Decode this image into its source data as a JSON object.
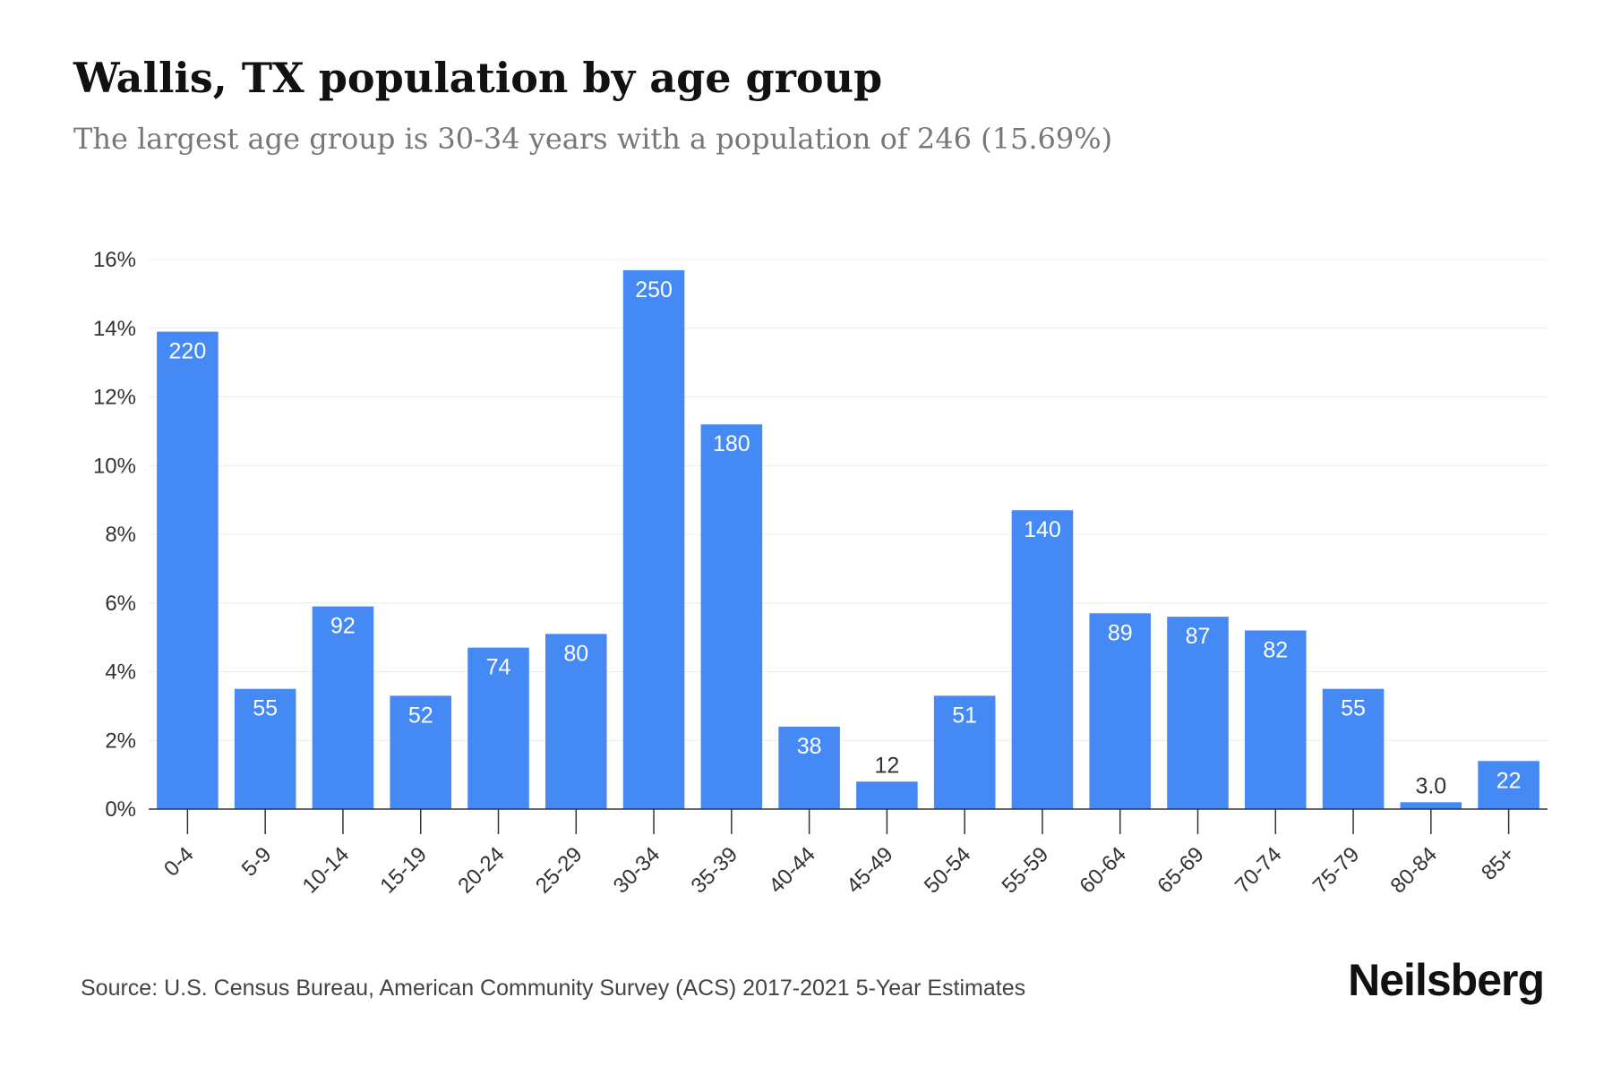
{
  "header": {
    "title": "Wallis, TX population by age group",
    "subtitle": "The largest age group is 30-34 years with a population of 246 (15.69%)"
  },
  "chart_data": {
    "type": "bar",
    "categories": [
      "0-4",
      "5-9",
      "10-14",
      "15-19",
      "20-24",
      "25-29",
      "30-34",
      "35-39",
      "40-44",
      "45-49",
      "50-54",
      "55-59",
      "60-64",
      "65-69",
      "70-74",
      "75-79",
      "80-84",
      "85+"
    ],
    "values": [
      13.9,
      3.5,
      5.9,
      3.3,
      4.7,
      5.1,
      15.69,
      11.2,
      2.4,
      0.8,
      3.3,
      8.7,
      5.7,
      5.6,
      5.2,
      3.5,
      0.2,
      1.4
    ],
    "data_labels": [
      "220",
      "55",
      "92",
      "52",
      "74",
      "80",
      "250",
      "180",
      "38",
      "12",
      "51",
      "140",
      "89",
      "87",
      "82",
      "55",
      "3.0",
      "22"
    ],
    "label_inside": [
      true,
      true,
      true,
      true,
      true,
      true,
      true,
      true,
      true,
      false,
      true,
      true,
      true,
      true,
      true,
      true,
      false,
      true
    ],
    "ylim": [
      0,
      16
    ],
    "yticks": [
      0,
      2,
      4,
      6,
      8,
      10,
      12,
      14,
      16
    ],
    "ytick_labels": [
      "0%",
      "2%",
      "4%",
      "6%",
      "8%",
      "10%",
      "12%",
      "14%",
      "16%"
    ],
    "grid": true,
    "bar_color": "#4589F5"
  },
  "footer": {
    "source": "Source: U.S. Census Bureau, American Community Survey (ACS) 2017-2021 5-Year Estimates",
    "brand": "Neilsberg"
  }
}
